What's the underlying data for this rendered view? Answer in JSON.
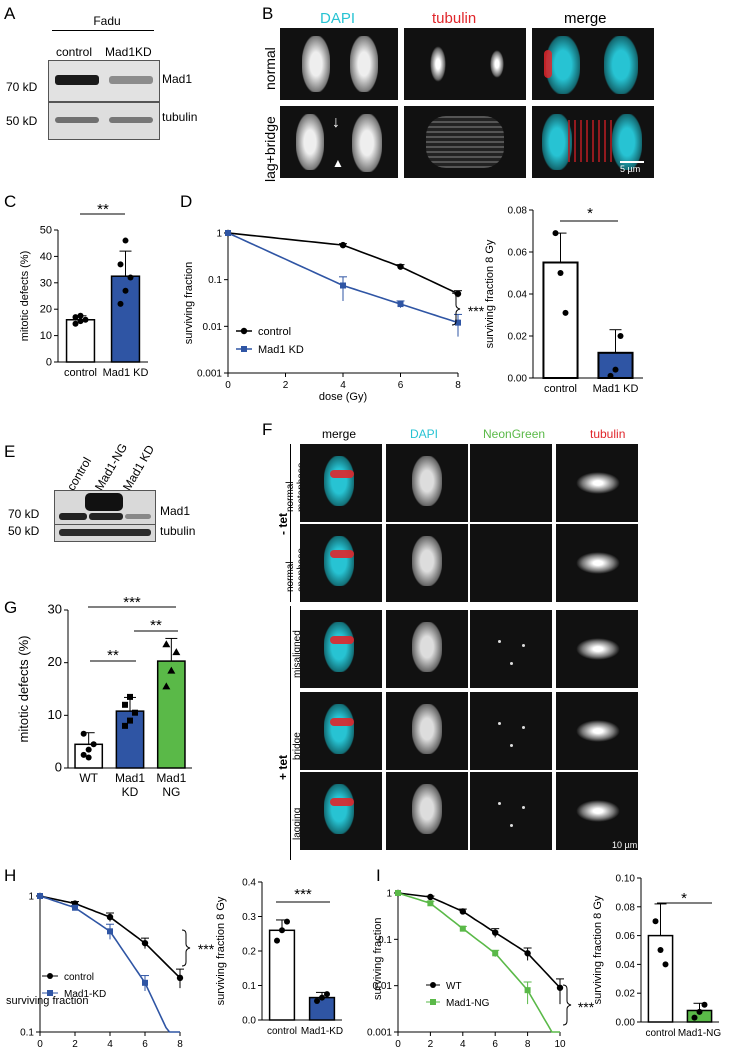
{
  "panel_letters": {
    "A": "A",
    "B": "B",
    "C": "C",
    "D": "D",
    "E": "E",
    "F": "F",
    "G": "G",
    "H": "H",
    "I": "I"
  },
  "panelA": {
    "cell_line": "Fadu",
    "lanes": [
      "control",
      "Mad1KD"
    ],
    "bands": [
      "Mad1",
      "tubulin"
    ],
    "markers": [
      "70 kD",
      "50 kD"
    ]
  },
  "panelB": {
    "columns": [
      "DAPI",
      "tubulin",
      "merge"
    ],
    "rows": [
      "normal",
      "lag+bridge"
    ],
    "scale_bar": "5 µm"
  },
  "panelE": {
    "lanes": [
      "control",
      "Mad1-NG",
      "Mad1 KD"
    ],
    "bands": [
      "Mad1",
      "tubulin"
    ],
    "markers": [
      "70 kD",
      "50 kD"
    ]
  },
  "panelF": {
    "columns": [
      "merge",
      "DAPI",
      "NeonGreen",
      "tubulin"
    ],
    "groups": [
      "- tet",
      "+ tet"
    ],
    "rows": [
      "normal metaphase",
      "normal anaphase",
      "misaligned",
      "bridge",
      "lagging"
    ],
    "row_lines": [
      [
        "normal",
        "metaphase"
      ],
      [
        "normal",
        "anaphase"
      ],
      [
        "misaligned"
      ],
      [
        "bridge"
      ],
      [
        "lagging"
      ]
    ],
    "scale_bar": "10 µm"
  },
  "colors": {
    "blue": "#2f55a4",
    "green": "#5ab948",
    "cyan": "#27c3d3",
    "red": "#e0262b",
    "black": "#000000"
  },
  "chart_data": [
    {
      "id": "C",
      "type": "bar",
      "categories": [
        "control",
        "Mad1 KD"
      ],
      "values": [
        16,
        32.5
      ],
      "errors": [
        1.5,
        9.5
      ],
      "points": [
        [
          14.5,
          15.5,
          16,
          17,
          17.5
        ],
        [
          22,
          27,
          32,
          37,
          46
        ]
      ],
      "ylabel": "mitotic defects (%)",
      "ylim": [
        0,
        50
      ],
      "yticks": [
        "0",
        "10",
        "20",
        "30",
        "40",
        "50"
      ],
      "significance": "**",
      "bar_colors": [
        "#ffffff",
        "#2f55a4"
      ]
    },
    {
      "id": "D-curve",
      "type": "line",
      "x": [
        0,
        4,
        6,
        8
      ],
      "series": [
        {
          "name": "control",
          "values": [
            1,
            0.55,
            0.19,
            0.05
          ],
          "errors": [
            0,
            0.04,
            0.02,
            0.008
          ]
        },
        {
          "name": "Mad1 KD",
          "values": [
            1,
            0.075,
            0.03,
            0.012
          ],
          "errors": [
            0,
            0.04,
            0.005,
            0.006
          ]
        }
      ],
      "xlabel": "dose (Gy)",
      "ylabel": "surviving fraction",
      "log_y": true,
      "xticks": [
        "0",
        "2",
        "4",
        "6",
        "8"
      ],
      "yticks": [
        "1",
        "0.1",
        "0.01",
        "0.001"
      ],
      "significance": "***"
    },
    {
      "id": "D-bar",
      "type": "bar",
      "categories": [
        "control",
        "Mad1 KD"
      ],
      "values": [
        0.055,
        0.012
      ],
      "errors": [
        0.014,
        0.011
      ],
      "points": [
        [
          0.069,
          0.05,
          0.031
        ],
        [
          0.001,
          0.004,
          0.02
        ]
      ],
      "ylabel": "surviving fraction 8 Gy",
      "ylim": [
        0,
        0.08
      ],
      "yticks": [
        "0.00",
        "0.02",
        "0.04",
        "0.06",
        "0.08"
      ],
      "significance": "*",
      "bar_colors": [
        "#ffffff",
        "#2f55a4"
      ]
    },
    {
      "id": "G",
      "type": "bar",
      "categories": [
        [
          "WT"
        ],
        [
          "Mad1",
          "KD"
        ],
        [
          "Mad1",
          "NG"
        ]
      ],
      "values": [
        4.5,
        10.8,
        20.3
      ],
      "errors": [
        2.2,
        2.6,
        4.3
      ],
      "points": [
        [
          2.5,
          3.5,
          4.5,
          6.5,
          2
        ],
        [
          8,
          9,
          10.5,
          12,
          13.5
        ],
        [
          15.5,
          18.5,
          22,
          23.5
        ]
      ],
      "ylabel": "mitotic defects (%)",
      "ylim": [
        0,
        30
      ],
      "yticks": [
        "0",
        "10",
        "20",
        "30"
      ],
      "significance": [
        "**",
        "**",
        "***"
      ],
      "bar_colors": [
        "#ffffff",
        "#2f55a4",
        "#5ab948"
      ]
    },
    {
      "id": "H-curve",
      "type": "line",
      "x": [
        0,
        2,
        4,
        6,
        8
      ],
      "series": [
        {
          "name": "control",
          "values": [
            1,
            0.88,
            0.7,
            0.45,
            0.25
          ],
          "errors": [
            0,
            0.03,
            0.05,
            0.04,
            0.04
          ]
        },
        {
          "name": "Mad1-KD",
          "values": [
            1,
            0.82,
            0.55,
            0.23,
            0.065
          ],
          "errors": [
            0,
            0.03,
            0.07,
            0.03,
            0.015
          ]
        }
      ],
      "xlabel": "dose (Gy)",
      "ylabel": "surviving fraction",
      "log_y": true,
      "xticks": [
        "0",
        "2",
        "4",
        "6",
        "8"
      ],
      "yticks": [
        "1",
        "0.1"
      ],
      "significance": "***"
    },
    {
      "id": "H-bar",
      "type": "bar",
      "categories": [
        "control",
        "Mad1-KD"
      ],
      "values": [
        0.26,
        0.065
      ],
      "errors": [
        0.03,
        0.015
      ],
      "points": [
        [
          0.23,
          0.26,
          0.285
        ],
        [
          0.055,
          0.065,
          0.075
        ]
      ],
      "ylabel": "surviving fraction 8 Gy",
      "ylim": [
        0,
        0.4
      ],
      "yticks": [
        "0.0",
        "0.1",
        "0.2",
        "0.3",
        "0.4"
      ],
      "significance": "***",
      "bar_colors": [
        "#ffffff",
        "#2f55a4"
      ]
    },
    {
      "id": "I-curve",
      "type": "line",
      "x": [
        0,
        2,
        4,
        6,
        8,
        10
      ],
      "series": [
        {
          "name": "WT",
          "values": [
            1,
            0.82,
            0.4,
            0.14,
            0.05,
            0.009
          ],
          "errors": [
            0,
            0.04,
            0.05,
            0.03,
            0.015,
            0.005
          ]
        },
        {
          "name": "Mad1-NG",
          "values": [
            1,
            0.6,
            0.17,
            0.05,
            0.008,
            0.0005
          ],
          "errors": [
            0,
            0.06,
            0.02,
            0.008,
            0.004,
            0.0002
          ]
        }
      ],
      "xlabel": "dose (Gy)",
      "ylabel": "surviving fraction",
      "log_y": true,
      "xticks": [
        "0",
        "2",
        "4",
        "6",
        "8",
        "10"
      ],
      "yticks": [
        "1",
        "0.1",
        "0.01",
        "0.001"
      ],
      "significance": "***"
    },
    {
      "id": "I-bar",
      "type": "bar",
      "categories": [
        "control",
        "Mad1-NG"
      ],
      "values": [
        0.06,
        0.008
      ],
      "errors": [
        0.022,
        0.005
      ],
      "points": [
        [
          0.07,
          0.05,
          0.04
        ],
        [
          0.003,
          0.007,
          0.012
        ]
      ],
      "ylabel": "surviving fraction 8 Gy",
      "ylim": [
        0,
        0.1
      ],
      "yticks": [
        "0.00",
        "0.02",
        "0.04",
        "0.06",
        "0.08",
        "0.10"
      ],
      "significance": "*",
      "bar_colors": [
        "#ffffff",
        "#5ab948"
      ]
    }
  ]
}
